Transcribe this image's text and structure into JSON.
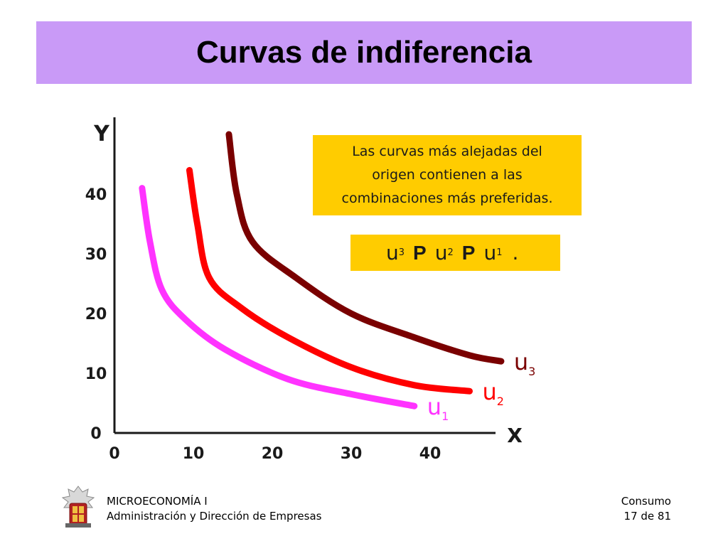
{
  "slide": {
    "title": "Curvas de indiferencia",
    "note": "Las curvas más alejadas del origen contienen a las combinaciones más preferidas.",
    "order": {
      "u3": "u",
      "u3_sub": "3",
      "p1": "P",
      "u2": "u",
      "u2_sub": "2",
      "p2": "P",
      "u1": "u",
      "u1_sub": "1",
      "end": "."
    }
  },
  "footer": {
    "course": "MICROECONOMÍA I",
    "degree": "Administración y Dirección de Empresas",
    "section": "Consumo",
    "page": "17 de 81"
  },
  "chart_data": {
    "type": "line",
    "xlabel": "X",
    "ylabel": "Y",
    "x_ticks": [
      "0",
      "10",
      "20",
      "30",
      "40"
    ],
    "y_ticks": [
      "0",
      "10",
      "20",
      "30",
      "40"
    ],
    "xlim": [
      0,
      48
    ],
    "ylim": [
      0,
      52
    ],
    "grid": false,
    "series": [
      {
        "name": "u1",
        "label": "u",
        "label_sub": "1",
        "color": "#ff33ff",
        "points": [
          [
            3.5,
            41
          ],
          [
            4.5,
            32
          ],
          [
            6,
            24
          ],
          [
            9,
            19
          ],
          [
            14,
            14
          ],
          [
            22,
            9
          ],
          [
            30,
            6.5
          ],
          [
            38,
            4.5
          ]
        ]
      },
      {
        "name": "u2",
        "label": "u",
        "label_sub": "2",
        "color": "#ff0000",
        "points": [
          [
            9.5,
            44
          ],
          [
            10.5,
            35
          ],
          [
            12,
            26
          ],
          [
            16,
            21
          ],
          [
            22,
            16
          ],
          [
            30,
            11
          ],
          [
            38,
            8
          ],
          [
            45,
            7
          ]
        ]
      },
      {
        "name": "u3",
        "label": "u",
        "label_sub": "3",
        "color": "#7a0000",
        "points": [
          [
            14.5,
            50
          ],
          [
            15.5,
            40
          ],
          [
            17.5,
            32
          ],
          [
            23,
            26
          ],
          [
            30,
            20
          ],
          [
            38,
            16
          ],
          [
            45,
            13
          ],
          [
            49,
            12
          ]
        ]
      }
    ]
  }
}
